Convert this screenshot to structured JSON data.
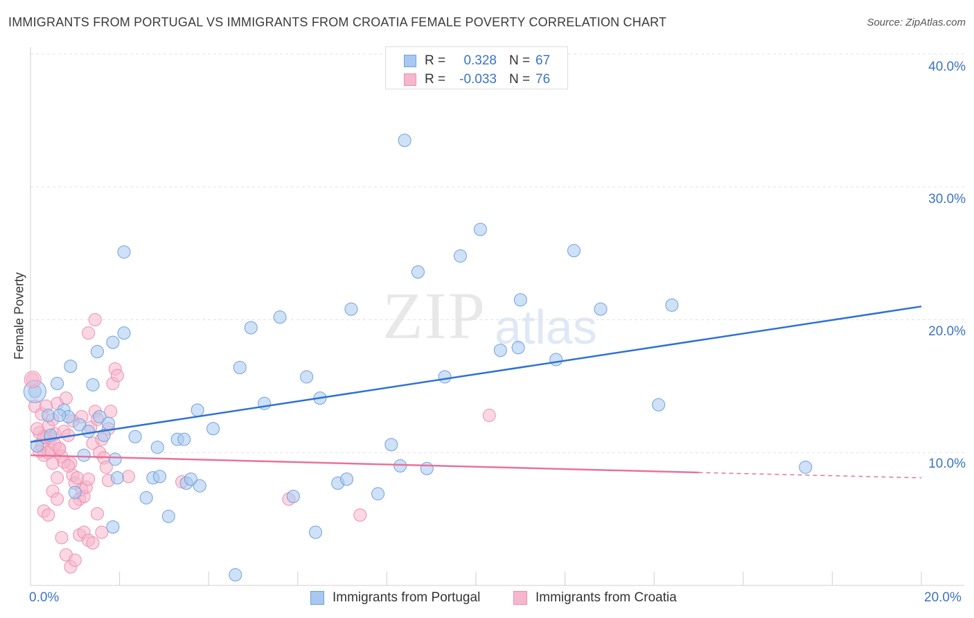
{
  "title": "IMMIGRANTS FROM PORTUGAL VS IMMIGRANTS FROM CROATIA FEMALE POVERTY CORRELATION CHART",
  "source": "Source: ZipAtlas.com",
  "watermark": {
    "main": "ZIP",
    "sub": "atlas"
  },
  "colors": {
    "portugal_fill": "#a8c8f0",
    "portugal_stroke": "#6f9fdc",
    "portugal_line": "#2e72d2",
    "croatia_fill": "#f6b6cc",
    "croatia_stroke": "#ec8fae",
    "croatia_line": "#e8729a",
    "tick_text": "#3a73c4",
    "grid": "#e2e2e2"
  },
  "legend": {
    "rows": [
      {
        "r_label": "R =",
        "r_value": "0.328",
        "n_label": "N =",
        "n_value": "67"
      },
      {
        "r_label": "R =",
        "r_value": "-0.033",
        "n_label": "N =",
        "n_value": "76"
      }
    ]
  },
  "chart_data": {
    "type": "scatter",
    "title": "IMMIGRANTS FROM PORTUGAL VS IMMIGRANTS FROM CROATIA FEMALE POVERTY CORRELATION CHART",
    "xlabel": "",
    "ylabel": "Female Poverty",
    "xlim": [
      0,
      20
    ],
    "ylim": [
      0,
      40
    ],
    "x_tick_labels": [
      "0.0%",
      "20.0%"
    ],
    "y_ticks": [
      10,
      20,
      30,
      40
    ],
    "y_tick_labels": [
      "10.0%",
      "20.0%",
      "30.0%",
      "40.0%"
    ],
    "grid": true,
    "series": [
      {
        "name": "Immigrants from Portugal",
        "r": 0.328,
        "n": 67,
        "trend": {
          "x0": 0.0,
          "y0": 10.8,
          "x1": 20.0,
          "y1": 21.0
        },
        "points": [
          [
            0.1,
            14.6
          ],
          [
            0.15,
            10.5
          ],
          [
            0.4,
            12.8
          ],
          [
            0.45,
            11.3
          ],
          [
            0.6,
            15.2
          ],
          [
            0.75,
            13.2
          ],
          [
            0.85,
            12.7
          ],
          [
            1.2,
            9.8
          ],
          [
            0.9,
            16.5
          ],
          [
            1.4,
            15.1
          ],
          [
            1.5,
            17.6
          ],
          [
            1.1,
            12.1
          ],
          [
            1.0,
            7.0
          ],
          [
            1.3,
            11.6
          ],
          [
            1.55,
            12.7
          ],
          [
            1.75,
            12.2
          ],
          [
            1.9,
            9.5
          ],
          [
            1.65,
            11.3
          ],
          [
            1.85,
            4.4
          ],
          [
            1.95,
            8.1
          ],
          [
            2.1,
            19.0
          ],
          [
            2.35,
            11.2
          ],
          [
            2.6,
            6.6
          ],
          [
            2.75,
            8.1
          ],
          [
            2.85,
            10.4
          ],
          [
            2.9,
            8.2
          ],
          [
            3.1,
            5.2
          ],
          [
            3.3,
            11.0
          ],
          [
            3.45,
            11.0
          ],
          [
            3.75,
            13.2
          ],
          [
            3.5,
            7.7
          ],
          [
            3.6,
            8.0
          ],
          [
            4.1,
            11.8
          ],
          [
            4.7,
            16.4
          ],
          [
            4.95,
            19.4
          ],
          [
            5.25,
            13.7
          ],
          [
            5.6,
            20.2
          ],
          [
            5.9,
            6.7
          ],
          [
            6.2,
            15.7
          ],
          [
            6.5,
            14.1
          ],
          [
            6.9,
            7.7
          ],
          [
            7.1,
            8.0
          ],
          [
            7.2,
            20.8
          ],
          [
            7.8,
            6.9
          ],
          [
            8.1,
            10.6
          ],
          [
            8.3,
            9.0
          ],
          [
            8.4,
            33.5
          ],
          [
            8.7,
            23.6
          ],
          [
            8.9,
            8.8
          ],
          [
            9.3,
            15.7
          ],
          [
            9.65,
            24.8
          ],
          [
            10.1,
            26.8
          ],
          [
            10.55,
            17.7
          ],
          [
            10.95,
            17.9
          ],
          [
            11.0,
            21.5
          ],
          [
            11.8,
            17.0
          ],
          [
            12.2,
            25.2
          ],
          [
            12.8,
            20.8
          ],
          [
            14.1,
            13.6
          ],
          [
            14.4,
            21.1
          ],
          [
            17.4,
            8.9
          ],
          [
            4.6,
            0.8
          ],
          [
            2.1,
            25.1
          ],
          [
            0.65,
            12.8
          ],
          [
            1.85,
            18.3
          ],
          [
            6.4,
            4.0
          ],
          [
            3.8,
            7.5
          ]
        ]
      },
      {
        "name": "Immigrants from Croatia",
        "r": -0.033,
        "n": 76,
        "trend": {
          "x0": 0.0,
          "y0": 9.8,
          "x1": 15.0,
          "y1": 8.5
        },
        "trend_dashed": {
          "x0": 15.0,
          "y0": 8.5,
          "x1": 20.0,
          "y1": 8.1
        },
        "points": [
          [
            0.05,
            15.5
          ],
          [
            0.1,
            13.5
          ],
          [
            0.2,
            11.5
          ],
          [
            0.25,
            10.5
          ],
          [
            0.3,
            9.8
          ],
          [
            0.35,
            11.1
          ],
          [
            0.4,
            12.0
          ],
          [
            0.45,
            10.2
          ],
          [
            0.5,
            12.5
          ],
          [
            0.55,
            11.4
          ],
          [
            0.6,
            13.7
          ],
          [
            0.65,
            10.3
          ],
          [
            0.7,
            9.7
          ],
          [
            0.75,
            11.6
          ],
          [
            0.8,
            14.1
          ],
          [
            0.85,
            11.3
          ],
          [
            0.9,
            9.2
          ],
          [
            0.95,
            8.3
          ],
          [
            1.0,
            7.7
          ],
          [
            1.05,
            8.1
          ],
          [
            1.1,
            6.5
          ],
          [
            1.15,
            7.2
          ],
          [
            1.2,
            6.7
          ],
          [
            1.25,
            7.4
          ],
          [
            1.3,
            8.0
          ],
          [
            1.35,
            11.9
          ],
          [
            1.4,
            10.7
          ],
          [
            1.45,
            13.1
          ],
          [
            1.5,
            12.5
          ],
          [
            1.55,
            10.0
          ],
          [
            1.6,
            11.0
          ],
          [
            1.65,
            9.6
          ],
          [
            1.7,
            8.9
          ],
          [
            1.75,
            7.9
          ],
          [
            1.8,
            13.1
          ],
          [
            1.85,
            15.2
          ],
          [
            1.9,
            16.3
          ],
          [
            1.95,
            15.8
          ],
          [
            0.3,
            5.6
          ],
          [
            0.4,
            5.3
          ],
          [
            0.5,
            7.1
          ],
          [
            0.6,
            6.5
          ],
          [
            0.7,
            3.6
          ],
          [
            0.8,
            2.3
          ],
          [
            0.9,
            1.4
          ],
          [
            1.0,
            1.9
          ],
          [
            1.1,
            3.8
          ],
          [
            1.2,
            4.0
          ],
          [
            1.3,
            3.4
          ],
          [
            1.4,
            3.2
          ],
          [
            1.5,
            5.4
          ],
          [
            1.6,
            4.0
          ],
          [
            1.0,
            6.2
          ],
          [
            0.6,
            8.1
          ],
          [
            0.5,
            9.2
          ],
          [
            0.4,
            10.0
          ],
          [
            0.3,
            11.2
          ],
          [
            0.2,
            10.1
          ],
          [
            0.15,
            11.8
          ],
          [
            0.25,
            12.9
          ],
          [
            0.35,
            13.5
          ],
          [
            0.45,
            11.1
          ],
          [
            0.55,
            10.6
          ],
          [
            0.65,
            10.3
          ],
          [
            0.75,
            9.3
          ],
          [
            0.85,
            9.0
          ],
          [
            1.3,
            19.0
          ],
          [
            1.45,
            20.0
          ],
          [
            1.75,
            11.8
          ],
          [
            2.2,
            8.2
          ],
          [
            3.4,
            7.8
          ],
          [
            5.8,
            6.5
          ],
          [
            7.4,
            5.3
          ],
          [
            10.3,
            12.8
          ],
          [
            0.95,
            12.4
          ],
          [
            1.15,
            12.7
          ]
        ]
      }
    ]
  },
  "bottom_legend": {
    "portugal_label": "Immigrants from Portugal",
    "croatia_label": "Immigrants from Croatia"
  }
}
